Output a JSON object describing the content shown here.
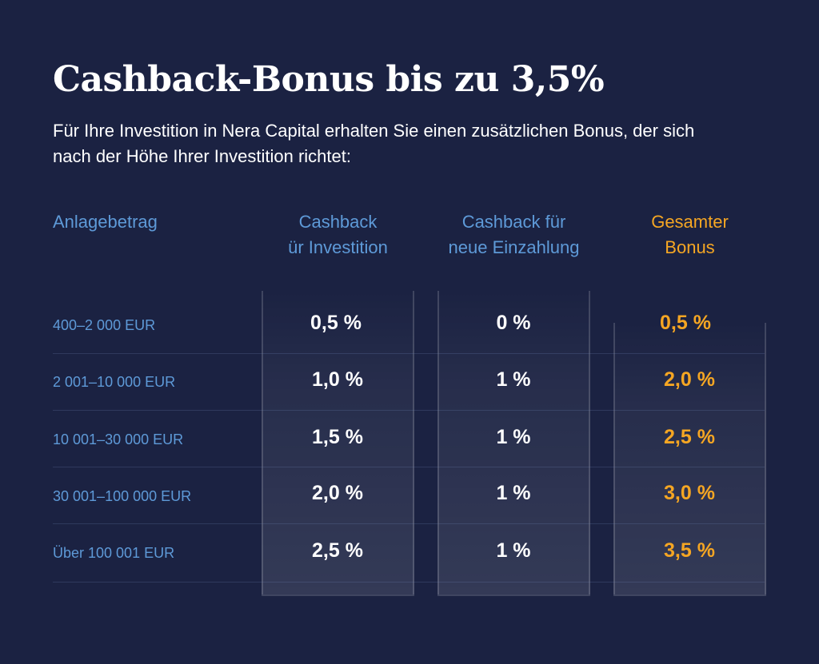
{
  "title": "Cashback-Bonus bis zu 3,5%",
  "subtitle": "Für Ihre Investition in Nera Capital erhalten Sie einen zusätzlichen Bonus, der sich nach der Höhe Ihrer Investition richtet:",
  "table": {
    "headers": {
      "amount": "Anlagebetrag",
      "cashback_investment_line1": "Cashback",
      "cashback_investment_line2": "ür Investition",
      "cashback_deposit_line1": "Cashback für",
      "cashback_deposit_line2": "neue Einzahlung",
      "total_line1": "Gesamter",
      "total_line2": "Bonus"
    },
    "rows": [
      {
        "amount": "400–2 000 EUR",
        "investment": "0,5 %",
        "deposit": "0 %",
        "total": "0,5 %"
      },
      {
        "amount": "2 001–10 000 EUR",
        "investment": "1,0 %",
        "deposit": "1 %",
        "total": "2,0 %"
      },
      {
        "amount": "10 001–30 000 EUR",
        "investment": "1,5 %",
        "deposit": "1 %",
        "total": "2,5 %"
      },
      {
        "amount": "30 001–100 000 EUR",
        "investment": "2,0 %",
        "deposit": "1 %",
        "total": "3,0 %"
      },
      {
        "amount": "Über 100 001 EUR",
        "investment": "2,5 %",
        "deposit": "1 %",
        "total": "3,5 %"
      }
    ]
  },
  "colors": {
    "background": "#1b2242",
    "header_blue": "#5e9ad8",
    "accent_gold": "#f5a623",
    "text_white": "#ffffff"
  }
}
